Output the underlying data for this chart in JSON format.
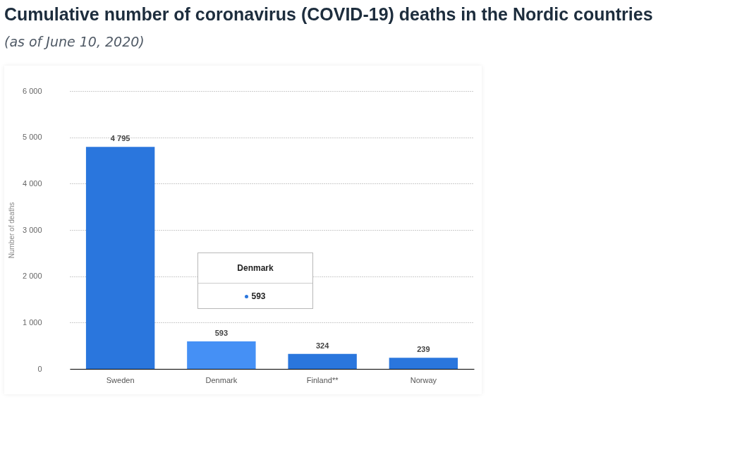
{
  "chart_data": {
    "type": "bar",
    "title": "Cumulative number of coronavirus (COVID-19) deaths in the Nordic countries",
    "subtitle": "(as of June 10, 2020)",
    "ylabel": "Number of deaths",
    "categories": [
      "Sweden",
      "Denmark",
      "Finland**",
      "Norway"
    ],
    "values": [
      4795,
      593,
      324,
      239
    ],
    "colors": [
      "#2a76dd",
      "#4590f5",
      "#2a76dd",
      "#2a76dd"
    ],
    "value_labels": [
      "4 795",
      "593",
      "324",
      "239"
    ],
    "ylim": [
      0,
      6000
    ],
    "yticks": [
      {
        "value": 0,
        "label": "0"
      },
      {
        "value": 1000,
        "label": "1 000"
      },
      {
        "value": 2000,
        "label": "2 000"
      },
      {
        "value": 3000,
        "label": "3 000"
      },
      {
        "value": 4000,
        "label": "4 000"
      },
      {
        "value": 5000,
        "label": "5 000"
      },
      {
        "value": 6000,
        "label": "6 000"
      }
    ],
    "grid": "y",
    "annotations": [
      "Denmark",
      "593"
    ]
  }
}
